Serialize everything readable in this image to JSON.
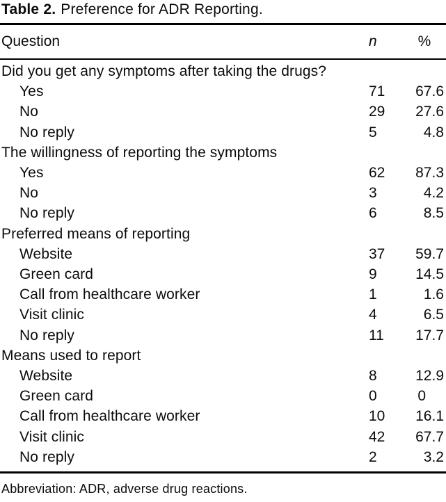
{
  "title": {
    "label": "Table 2.",
    "caption": "Preference for ADR Reporting."
  },
  "columns": {
    "question": "Question",
    "n": "n",
    "percent": "%"
  },
  "sections": [
    {
      "header": "Did you get any symptoms after taking the drugs?",
      "rows": [
        {
          "label": "Yes",
          "n": "71",
          "percent": "67.6"
        },
        {
          "label": "No",
          "n": "29",
          "percent": "27.6"
        },
        {
          "label": "No reply",
          "n": "5",
          "percent": "4.8"
        }
      ]
    },
    {
      "header": "The willingness of reporting the symptoms",
      "rows": [
        {
          "label": "Yes",
          "n": "62",
          "percent": "87.3"
        },
        {
          "label": "No",
          "n": "3",
          "percent": "4.2"
        },
        {
          "label": "No reply",
          "n": "6",
          "percent": "8.5"
        }
      ]
    },
    {
      "header": "Preferred means of reporting",
      "rows": [
        {
          "label": "Website",
          "n": "37",
          "percent": "59.7"
        },
        {
          "label": "Green card",
          "n": "9",
          "percent": "14.5"
        },
        {
          "label": "Call from healthcare worker",
          "n": "1",
          "percent": "1.6"
        },
        {
          "label": "Visit clinic",
          "n": "4",
          "percent": "6.5"
        },
        {
          "label": "No reply",
          "n": "11",
          "percent": "17.7"
        }
      ]
    },
    {
      "header": "Means used to report",
      "rows": [
        {
          "label": "Website",
          "n": "8",
          "percent": "12.9"
        },
        {
          "label": "Green card",
          "n": "0",
          "percent": "0"
        },
        {
          "label": "Call from healthcare worker",
          "n": "10",
          "percent": "16.1"
        },
        {
          "label": "Visit clinic",
          "n": "42",
          "percent": "67.7"
        },
        {
          "label": "No reply",
          "n": "2",
          "percent": "3.2"
        }
      ]
    }
  ],
  "footnote": "Abbreviation: ADR, adverse drug reactions."
}
